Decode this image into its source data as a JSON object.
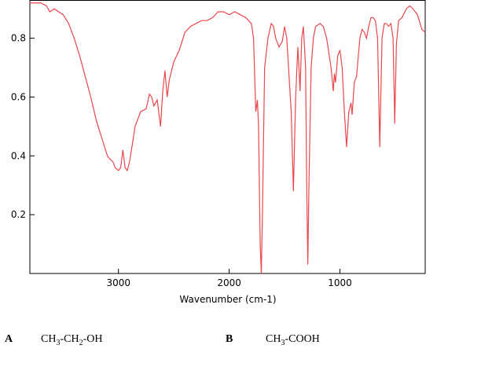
{
  "chart_data": {
    "type": "line",
    "xlabel": "Wavenumber (cm-1)",
    "x": [
      3800,
      3700,
      3650,
      3620,
      3580,
      3500,
      3450,
      3400,
      3350,
      3300,
      3250,
      3200,
      3150,
      3100,
      3080,
      3050,
      3030,
      3000,
      2980,
      2960,
      2940,
      2920,
      2900,
      2870,
      2850,
      2800,
      2750,
      2720,
      2700,
      2680,
      2650,
      2620,
      2600,
      2580,
      2560,
      2540,
      2500,
      2450,
      2400,
      2350,
      2300,
      2250,
      2200,
      2150,
      2100,
      2050,
      2000,
      1950,
      1900,
      1850,
      1800,
      1780,
      1760,
      1745,
      1735,
      1720,
      1710,
      1700,
      1680,
      1650,
      1620,
      1600,
      1580,
      1550,
      1520,
      1500,
      1480,
      1440,
      1420,
      1400,
      1380,
      1370,
      1360,
      1345,
      1330,
      1310,
      1300,
      1290,
      1280,
      1260,
      1240,
      1220,
      1180,
      1150,
      1120,
      1080,
      1060,
      1050,
      1040,
      1020,
      1000,
      980,
      960,
      940,
      920,
      900,
      890,
      870,
      850,
      820,
      800,
      780,
      760,
      740,
      720,
      700,
      680,
      660,
      640,
      620,
      600,
      580,
      560,
      540,
      520,
      505,
      490,
      470,
      440,
      400,
      370,
      340,
      300,
      260,
      230
    ],
    "series": [
      {
        "color": "#e8474c",
        "values": [
          0.92,
          0.92,
          0.91,
          0.89,
          0.9,
          0.88,
          0.85,
          0.8,
          0.74,
          0.67,
          0.6,
          0.52,
          0.46,
          0.4,
          0.39,
          0.38,
          0.36,
          0.35,
          0.36,
          0.42,
          0.36,
          0.35,
          0.38,
          0.45,
          0.5,
          0.55,
          0.56,
          0.61,
          0.6,
          0.57,
          0.59,
          0.5,
          0.62,
          0.69,
          0.6,
          0.66,
          0.72,
          0.76,
          0.82,
          0.84,
          0.85,
          0.86,
          0.86,
          0.87,
          0.89,
          0.89,
          0.88,
          0.89,
          0.88,
          0.87,
          0.85,
          0.8,
          0.55,
          0.59,
          0.5,
          0.1,
          0.0,
          0.2,
          0.7,
          0.8,
          0.85,
          0.84,
          0.8,
          0.77,
          0.79,
          0.84,
          0.8,
          0.55,
          0.28,
          0.6,
          0.77,
          0.7,
          0.62,
          0.8,
          0.84,
          0.7,
          0.3,
          0.03,
          0.3,
          0.7,
          0.8,
          0.84,
          0.85,
          0.84,
          0.8,
          0.7,
          0.62,
          0.68,
          0.65,
          0.74,
          0.76,
          0.7,
          0.55,
          0.43,
          0.55,
          0.58,
          0.54,
          0.65,
          0.67,
          0.8,
          0.83,
          0.82,
          0.8,
          0.84,
          0.87,
          0.87,
          0.86,
          0.8,
          0.43,
          0.8,
          0.85,
          0.85,
          0.84,
          0.85,
          0.8,
          0.51,
          0.78,
          0.86,
          0.87,
          0.9,
          0.91,
          0.9,
          0.88,
          0.83,
          0.82
        ]
      }
    ],
    "xlim": [
      3800,
      230
    ],
    "ylim": [
      0,
      0.93
    ],
    "xticks": [
      3000,
      2000,
      1000
    ],
    "yticks": [
      0.2,
      0.4,
      0.6,
      0.8
    ]
  },
  "options": [
    {
      "letter": "A",
      "formula": [
        "CH",
        "3",
        "-CH",
        "2",
        "-OH"
      ]
    },
    {
      "letter": "B",
      "formula": [
        "CH",
        "3",
        "-COOH"
      ]
    }
  ]
}
